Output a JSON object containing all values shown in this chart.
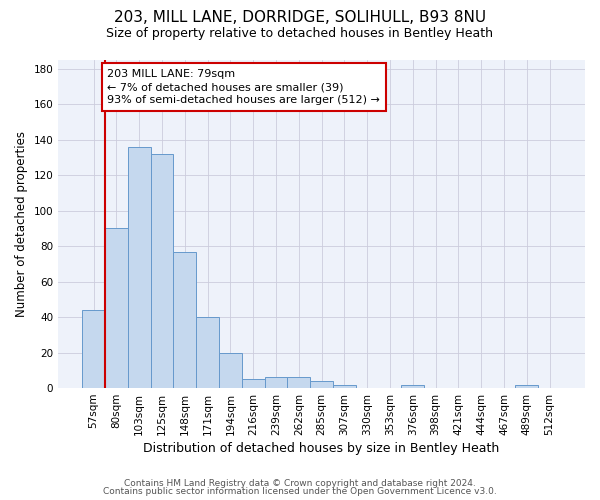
{
  "title1": "203, MILL LANE, DORRIDGE, SOLIHULL, B93 8NU",
  "title2": "Size of property relative to detached houses in Bentley Heath",
  "xlabel": "Distribution of detached houses by size in Bentley Heath",
  "ylabel": "Number of detached properties",
  "categories": [
    "57sqm",
    "80sqm",
    "103sqm",
    "125sqm",
    "148sqm",
    "171sqm",
    "194sqm",
    "216sqm",
    "239sqm",
    "262sqm",
    "285sqm",
    "307sqm",
    "330sqm",
    "353sqm",
    "376sqm",
    "398sqm",
    "421sqm",
    "444sqm",
    "467sqm",
    "489sqm",
    "512sqm"
  ],
  "values": [
    44,
    90,
    136,
    132,
    77,
    40,
    20,
    5,
    6,
    6,
    4,
    2,
    0,
    0,
    2,
    0,
    0,
    0,
    0,
    2,
    0
  ],
  "bar_color": "#c5d8ee",
  "bar_edge_color": "#6699cc",
  "background_color": "#eef2fa",
  "grid_color": "#ccccdd",
  "vline_color": "#cc0000",
  "annotation_line1": "203 MILL LANE: 79sqm",
  "annotation_line2": "← 7% of detached houses are smaller (39)",
  "annotation_line3": "93% of semi-detached houses are larger (512) →",
  "annotation_box_edgecolor": "#cc0000",
  "ylim": [
    0,
    185
  ],
  "yticks": [
    0,
    20,
    40,
    60,
    80,
    100,
    120,
    140,
    160,
    180
  ],
  "footer1": "Contains HM Land Registry data © Crown copyright and database right 2024.",
  "footer2": "Contains public sector information licensed under the Open Government Licence v3.0.",
  "title1_fontsize": 11,
  "title2_fontsize": 9,
  "ylabel_fontsize": 8.5,
  "xlabel_fontsize": 9,
  "tick_fontsize": 7.5,
  "footer_fontsize": 6.5
}
